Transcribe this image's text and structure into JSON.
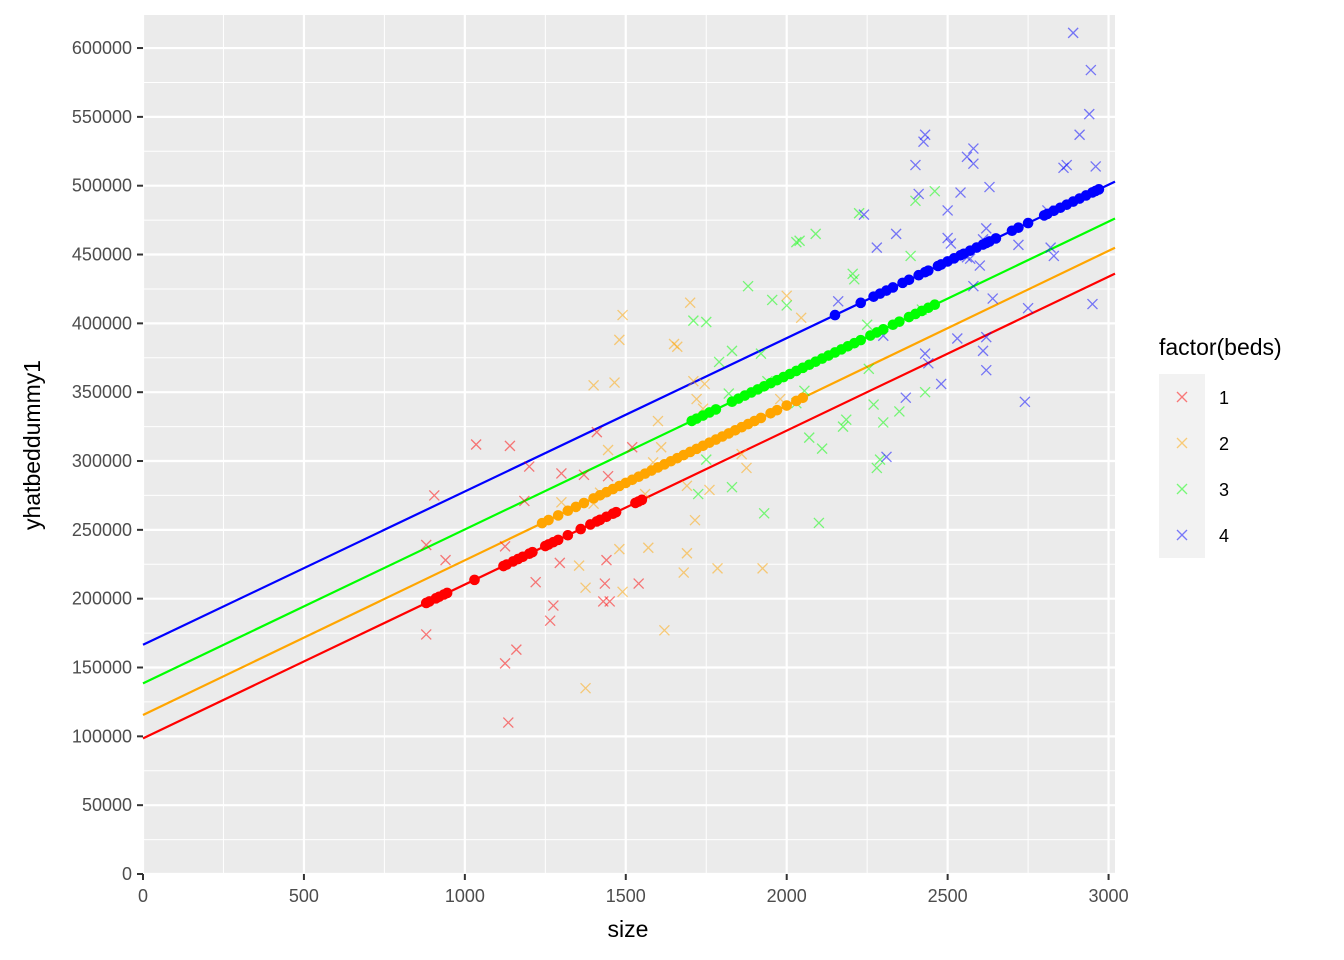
{
  "chart_data": {
    "type": "scatter",
    "xlabel": "size",
    "ylabel": "yhatbeddummy1",
    "xlim": [
      0,
      3020
    ],
    "ylim": [
      0,
      624000
    ],
    "x_ticks": [
      0,
      500,
      1000,
      1500,
      2000,
      2500,
      3000
    ],
    "y_ticks": [
      0,
      50000,
      100000,
      150000,
      200000,
      250000,
      300000,
      350000,
      400000,
      450000,
      500000,
      550000,
      600000
    ],
    "x_tick_labels": [
      "0",
      "500",
      "1000",
      "1500",
      "2000",
      "2500",
      "3000"
    ],
    "y_tick_labels": [
      "0",
      "50000",
      "100000",
      "150000",
      "200000",
      "250000",
      "300000",
      "350000",
      "400000",
      "450000",
      "500000",
      "550000",
      "600000"
    ],
    "grid": true,
    "background": "#ebebeb",
    "legend": {
      "title": "factor(beds)",
      "position": "right",
      "entries": [
        "1",
        "2",
        "3",
        "4"
      ]
    },
    "series": [
      {
        "name": "1",
        "color": "#ff0000",
        "fit_line": {
          "intercept": 98500,
          "slope": 111.8
        },
        "fitted_points_x": [
          880,
          890,
          910,
          920,
          935,
          945,
          1030,
          1120,
          1130,
          1150,
          1165,
          1180,
          1200,
          1210,
          1250,
          1260,
          1275,
          1290,
          1320,
          1360,
          1390,
          1410,
          1420,
          1440,
          1460,
          1470,
          1530,
          1540,
          1550
        ],
        "observed": [
          [
            880,
            239000
          ],
          [
            905,
            275000
          ],
          [
            880,
            174000
          ],
          [
            940,
            228000
          ],
          [
            1035,
            312000
          ],
          [
            1140,
            311000
          ],
          [
            1125,
            238000
          ],
          [
            1200,
            296000
          ],
          [
            1185,
            271000
          ],
          [
            1125,
            153000
          ],
          [
            1160,
            163000
          ],
          [
            1135,
            110000
          ],
          [
            1220,
            212000
          ],
          [
            1300,
            291000
          ],
          [
            1275,
            195000
          ],
          [
            1265,
            184000
          ],
          [
            1295,
            226000
          ],
          [
            1370,
            290000
          ],
          [
            1410,
            321000
          ],
          [
            1445,
            289000
          ],
          [
            1440,
            228000
          ],
          [
            1435,
            211000
          ],
          [
            1430,
            198000
          ],
          [
            1450,
            198000
          ],
          [
            1520,
            310000
          ],
          [
            1540,
            211000
          ]
        ]
      },
      {
        "name": "2",
        "color": "#ffa500",
        "fit_line": {
          "intercept": 115500,
          "slope": 112.4
        },
        "fitted_points_x": [
          1240,
          1260,
          1290,
          1320,
          1345,
          1370,
          1400,
          1420,
          1440,
          1460,
          1480,
          1500,
          1520,
          1540,
          1560,
          1580,
          1600,
          1620,
          1640,
          1660,
          1680,
          1700,
          1720,
          1740,
          1760,
          1780,
          1800,
          1820,
          1840,
          1860,
          1880,
          1900,
          1920,
          1950,
          1970,
          2000,
          2030,
          2050
        ],
        "observed": [
          [
            1400,
            355000
          ],
          [
            1490,
            406000
          ],
          [
            1480,
            388000
          ],
          [
            1465,
            357000
          ],
          [
            1445,
            308000
          ],
          [
            1420,
            277000
          ],
          [
            1400,
            269000
          ],
          [
            1300,
            270000
          ],
          [
            1355,
            224000
          ],
          [
            1375,
            208000
          ],
          [
            1375,
            135000
          ],
          [
            1480,
            236000
          ],
          [
            1490,
            205000
          ],
          [
            1570,
            237000
          ],
          [
            1560,
            276000
          ],
          [
            1620,
            177000
          ],
          [
            1600,
            329000
          ],
          [
            1660,
            383000
          ],
          [
            1650,
            385000
          ],
          [
            1700,
            415000
          ],
          [
            1710,
            358000
          ],
          [
            1745,
            356000
          ],
          [
            1720,
            345000
          ],
          [
            1740,
            338000
          ],
          [
            1680,
            219000
          ],
          [
            1690,
            233000
          ],
          [
            1715,
            257000
          ],
          [
            1760,
            279000
          ],
          [
            1785,
            222000
          ],
          [
            1860,
            305000
          ],
          [
            1875,
            295000
          ],
          [
            1925,
            222000
          ],
          [
            2000,
            420000
          ],
          [
            2045,
            404000
          ],
          [
            1980,
            345000
          ],
          [
            1610,
            310000
          ],
          [
            1585,
            299000
          ],
          [
            1690,
            282000
          ]
        ]
      },
      {
        "name": "3",
        "color": "#00ff00",
        "fit_line": {
          "intercept": 138500,
          "slope": 111.8
        },
        "fitted_points_x": [
          1705,
          1720,
          1740,
          1760,
          1780,
          1830,
          1850,
          1870,
          1890,
          1910,
          1930,
          1950,
          1970,
          1990,
          2010,
          2030,
          2050,
          2070,
          2090,
          2110,
          2130,
          2150,
          2170,
          2190,
          2210,
          2230,
          2260,
          2280,
          2300,
          2330,
          2350,
          2380,
          2400,
          2420,
          2440,
          2460
        ],
        "observed": [
          [
            1710,
            402000
          ],
          [
            1750,
            401000
          ],
          [
            1790,
            372000
          ],
          [
            1830,
            380000
          ],
          [
            1880,
            427000
          ],
          [
            1920,
            378000
          ],
          [
            1940,
            358000
          ],
          [
            2030,
            459000
          ],
          [
            2040,
            460000
          ],
          [
            2090,
            465000
          ],
          [
            1955,
            417000
          ],
          [
            2000,
            413000
          ],
          [
            2055,
            351000
          ],
          [
            2070,
            317000
          ],
          [
            2110,
            309000
          ],
          [
            2100,
            255000
          ],
          [
            2175,
            325000
          ],
          [
            2185,
            330000
          ],
          [
            2205,
            436000
          ],
          [
            2210,
            432000
          ],
          [
            2250,
            399000
          ],
          [
            2255,
            367000
          ],
          [
            2270,
            341000
          ],
          [
            2280,
            295000
          ],
          [
            2290,
            301000
          ],
          [
            2300,
            328000
          ],
          [
            2350,
            336000
          ],
          [
            2385,
            449000
          ],
          [
            2400,
            489000
          ],
          [
            2460,
            496000
          ],
          [
            2430,
            350000
          ],
          [
            2420,
            410000
          ],
          [
            1725,
            276000
          ],
          [
            1830,
            281000
          ],
          [
            1930,
            262000
          ],
          [
            2030,
            342000
          ],
          [
            1750,
            301000
          ],
          [
            1820,
            349000
          ],
          [
            2225,
            480000
          ]
        ]
      },
      {
        "name": "4",
        "color": "#0000ff",
        "fit_line": {
          "intercept": 166500,
          "slope": 111.4
        },
        "fitted_points_x": [
          2150,
          2230,
          2270,
          2290,
          2310,
          2330,
          2360,
          2380,
          2410,
          2430,
          2440,
          2470,
          2480,
          2500,
          2520,
          2540,
          2550,
          2570,
          2590,
          2610,
          2620,
          2630,
          2650,
          2700,
          2720,
          2750,
          2800,
          2810,
          2830,
          2850,
          2870,
          2890,
          2910,
          2930,
          2950,
          2960,
          2970
        ],
        "observed": [
          [
            2890,
            611000
          ],
          [
            2945,
            584000
          ],
          [
            2940,
            552000
          ],
          [
            2910,
            537000
          ],
          [
            2430,
            537000
          ],
          [
            2425,
            532000
          ],
          [
            2580,
            527000
          ],
          [
            2400,
            515000
          ],
          [
            2560,
            521000
          ],
          [
            2580,
            516000
          ],
          [
            2870,
            515000
          ],
          [
            2860,
            513000
          ],
          [
            2410,
            494000
          ],
          [
            2540,
            495000
          ],
          [
            2630,
            499000
          ],
          [
            2500,
            482000
          ],
          [
            2240,
            479000
          ],
          [
            2810,
            482000
          ],
          [
            2960,
            514000
          ],
          [
            2620,
            469000
          ],
          [
            2720,
            457000
          ],
          [
            2820,
            455000
          ],
          [
            2280,
            455000
          ],
          [
            2340,
            465000
          ],
          [
            2500,
            462000
          ],
          [
            2510,
            458000
          ],
          [
            2610,
            461000
          ],
          [
            2830,
            449000
          ],
          [
            2570,
            447000
          ],
          [
            2580,
            427000
          ],
          [
            2640,
            418000
          ],
          [
            2430,
            378000
          ],
          [
            2440,
            371000
          ],
          [
            2480,
            356000
          ],
          [
            2530,
            389000
          ],
          [
            2620,
            390000
          ],
          [
            2610,
            380000
          ],
          [
            2620,
            366000
          ],
          [
            2750,
            411000
          ],
          [
            2950,
            414000
          ],
          [
            2740,
            343000
          ],
          [
            2370,
            346000
          ],
          [
            2310,
            303000
          ],
          [
            2300,
            391000
          ],
          [
            2160,
            416000
          ],
          [
            2560,
            448000
          ],
          [
            2600,
            442000
          ]
        ]
      }
    ]
  }
}
